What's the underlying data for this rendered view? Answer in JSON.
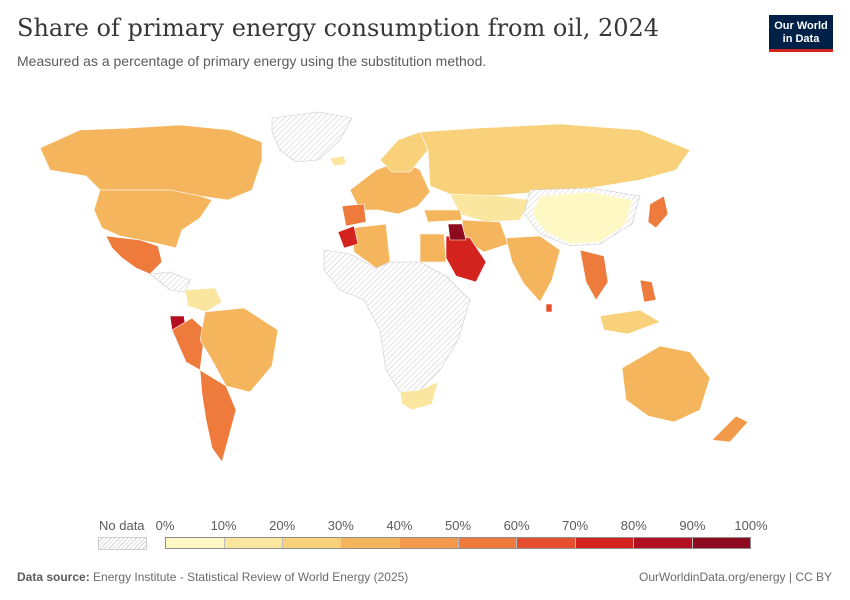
{
  "header": {
    "title": "Share of primary energy consumption from oil, 2024",
    "subtitle": "Measured as a percentage of primary energy using the substitution method.",
    "logo_line1": "Our World",
    "logo_line2": "in Data"
  },
  "legend": {
    "no_data_label": "No data",
    "ticks": [
      "0%",
      "10%",
      "20%",
      "30%",
      "40%",
      "50%",
      "60%",
      "70%",
      "80%",
      "90%",
      "100%"
    ],
    "bin_colors": [
      "#fef8c4",
      "#fbe6a0",
      "#f8d17a",
      "#f5b55d",
      "#f39a4a",
      "#ee7a3c",
      "#e54f2e",
      "#d4221e",
      "#b30f20",
      "#8e0a1e",
      "#6a0617"
    ],
    "no_data_color": "#e6e6e6"
  },
  "footer": {
    "source_label": "Data source:",
    "source_text": "Energy Institute - Statistical Review of World Energy (2025)",
    "url": "OurWorldinData.org/energy | CC BY"
  }
}
